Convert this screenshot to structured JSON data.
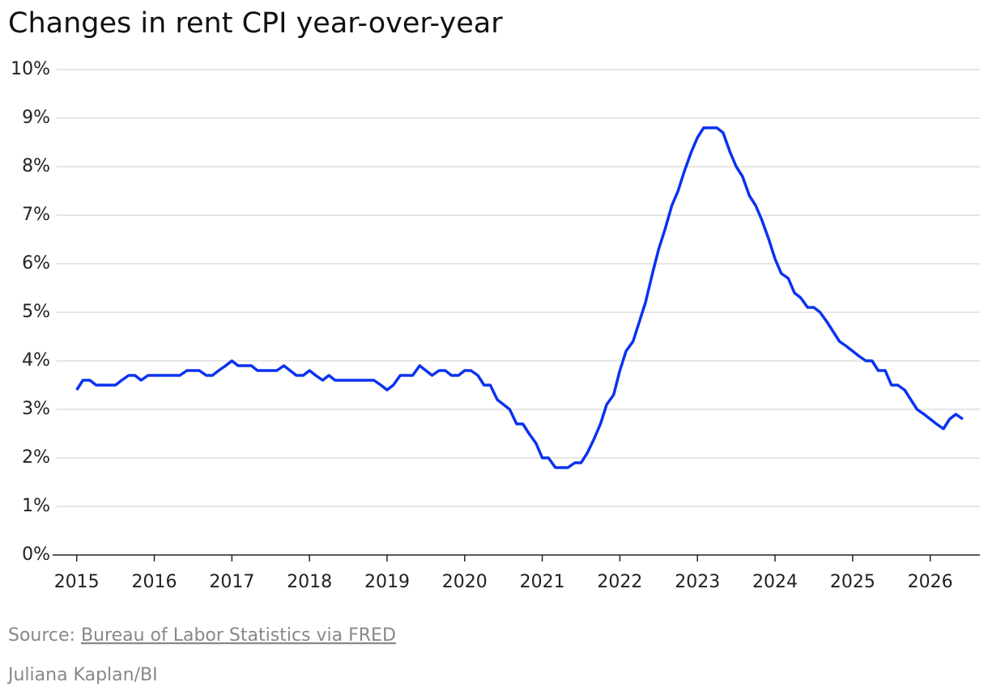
{
  "chart_data": {
    "type": "line",
    "title": "Changes in rent CPI year-over-year",
    "source_prefix": "Source:",
    "source_link": "Bureau of Labor Statistics via FRED",
    "credit": "Juliana Kaplan/BI",
    "x": [
      2015.0,
      2015.08,
      2015.17,
      2015.25,
      2015.33,
      2015.42,
      2015.5,
      2015.58,
      2015.67,
      2015.75,
      2015.83,
      2015.92,
      2016.0,
      2016.08,
      2016.17,
      2016.25,
      2016.33,
      2016.42,
      2016.5,
      2016.58,
      2016.67,
      2016.75,
      2016.83,
      2016.92,
      2017.0,
      2017.08,
      2017.17,
      2017.25,
      2017.33,
      2017.42,
      2017.5,
      2017.58,
      2017.67,
      2017.75,
      2017.83,
      2017.92,
      2018.0,
      2018.08,
      2018.17,
      2018.25,
      2018.33,
      2018.42,
      2018.5,
      2018.58,
      2018.67,
      2018.75,
      2018.83,
      2018.92,
      2019.0,
      2019.08,
      2019.17,
      2019.25,
      2019.33,
      2019.42,
      2019.5,
      2019.58,
      2019.67,
      2019.75,
      2019.83,
      2019.92,
      2020.0,
      2020.08,
      2020.17,
      2020.25,
      2020.33,
      2020.42,
      2020.5,
      2020.58,
      2020.67,
      2020.75,
      2020.83,
      2020.92,
      2021.0,
      2021.08,
      2021.17,
      2021.25,
      2021.33,
      2021.42,
      2021.5,
      2021.58,
      2021.67,
      2021.75,
      2021.83,
      2021.92,
      2022.0,
      2022.08,
      2022.17,
      2022.25,
      2022.33,
      2022.42,
      2022.5,
      2022.58,
      2022.67,
      2022.75,
      2022.83,
      2022.92,
      2023.0,
      2023.08,
      2023.17,
      2023.25,
      2023.33,
      2023.42,
      2023.5,
      2023.58,
      2023.67,
      2023.75,
      2023.83,
      2023.92,
      2024.0,
      2024.08,
      2024.17,
      2024.25,
      2024.33,
      2024.42,
      2024.5,
      2024.58,
      2024.67,
      2024.75,
      2024.83,
      2024.92,
      2025.0,
      2025.08,
      2025.17,
      2025.25,
      2025.33,
      2025.42,
      2025.5,
      2025.58,
      2025.67,
      2025.75,
      2025.83,
      2025.92,
      2026.0,
      2026.08,
      2026.17,
      2026.25,
      2026.33,
      2026.42
    ],
    "series": [
      {
        "name": "Rent CPI",
        "color": "#0a32f0",
        "values": [
          3.4,
          3.6,
          3.6,
          3.5,
          3.5,
          3.5,
          3.5,
          3.6,
          3.7,
          3.7,
          3.6,
          3.7,
          3.7,
          3.7,
          3.7,
          3.7,
          3.7,
          3.8,
          3.8,
          3.8,
          3.7,
          3.7,
          3.8,
          3.9,
          4.0,
          3.9,
          3.9,
          3.9,
          3.8,
          3.8,
          3.8,
          3.8,
          3.9,
          3.8,
          3.7,
          3.7,
          3.8,
          3.7,
          3.6,
          3.7,
          3.6,
          3.6,
          3.6,
          3.6,
          3.6,
          3.6,
          3.6,
          3.5,
          3.4,
          3.5,
          3.7,
          3.7,
          3.7,
          3.9,
          3.8,
          3.7,
          3.8,
          3.8,
          3.7,
          3.7,
          3.8,
          3.8,
          3.7,
          3.5,
          3.5,
          3.2,
          3.1,
          3.0,
          2.7,
          2.7,
          2.5,
          2.3,
          2.0,
          2.0,
          1.8,
          1.8,
          1.8,
          1.9,
          1.9,
          2.1,
          2.4,
          2.7,
          3.1,
          3.3,
          3.8,
          4.2,
          4.4,
          4.8,
          5.2,
          5.8,
          6.3,
          6.7,
          7.2,
          7.5,
          7.9,
          8.3,
          8.6,
          8.8,
          8.8,
          8.8,
          8.7,
          8.3,
          8.0,
          7.8,
          7.4,
          7.2,
          6.9,
          6.5,
          6.1,
          5.8,
          5.7,
          5.4,
          5.3,
          5.1,
          5.1,
          5.0,
          4.8,
          4.6,
          4.4,
          4.3,
          4.2,
          4.1,
          4.0,
          4.0,
          3.8,
          3.8,
          3.5,
          3.5,
          3.4,
          3.2,
          3.0,
          2.9,
          2.8,
          2.7,
          2.6,
          2.8,
          2.9,
          2.8
        ]
      }
    ],
    "xlim": [
      2014.69,
      2026.64
    ],
    "xticks": [
      2015,
      2016,
      2017,
      2018,
      2019,
      2020,
      2021,
      2022,
      2023,
      2024,
      2025,
      2026
    ],
    "ylim": [
      0,
      10
    ],
    "yticks": [
      {
        "value": 0,
        "label": "0%"
      },
      {
        "value": 1,
        "label": "1%"
      },
      {
        "value": 2,
        "label": "2%"
      },
      {
        "value": 3,
        "label": "3%"
      },
      {
        "value": 4,
        "label": "4%"
      },
      {
        "value": 5,
        "label": "5%"
      },
      {
        "value": 6,
        "label": "6%"
      },
      {
        "value": 7,
        "label": "7%"
      },
      {
        "value": 8,
        "label": "8%"
      },
      {
        "value": 9,
        "label": "9%"
      },
      {
        "value": 10,
        "label": "10%"
      }
    ],
    "grid": true
  }
}
